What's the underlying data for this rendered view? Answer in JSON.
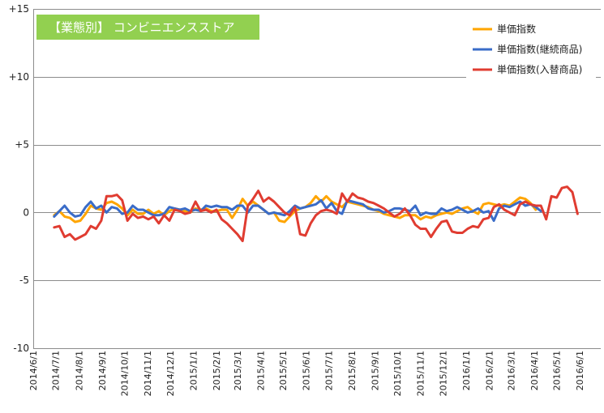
{
  "chart_data": {
    "type": "line",
    "title": "【業態別】 コンビニエンスストア",
    "ylim": [
      -10,
      15
    ],
    "yticks": [
      {
        "value": 15,
        "label": "+15"
      },
      {
        "value": 10,
        "label": "+10"
      },
      {
        "value": 5,
        "label": "+5"
      },
      {
        "value": 0,
        "label": "0"
      },
      {
        "value": -5,
        "label": "-5"
      },
      {
        "value": -10,
        "label": "-10"
      }
    ],
    "x_start": "2014/6/1",
    "x_end": "2016/6/29",
    "xtick_labels": [
      "2014/6/1",
      "2014/7/1",
      "2014/8/1",
      "2014/9/1",
      "2014/10/1",
      "2014/11/1",
      "2014/12/1",
      "2015/1/1",
      "2015/2/1",
      "2015/3/1",
      "2015/4/1",
      "2015/5/1",
      "2015/6/1",
      "2015/7/1",
      "2015/8/1",
      "2015/9/1",
      "2015/10/1",
      "2015/11/1",
      "2015/12/1",
      "2016/1/1",
      "2016/2/1",
      "2016/3/1",
      "2016/4/1",
      "2016/5/1",
      "2016/6/1"
    ],
    "legend_position": "top-right",
    "grid": true,
    "series": [
      {
        "name": "単価指数",
        "color": "#ffa500",
        "values": [
          -0.2,
          0.1,
          -0.3,
          -0.4,
          -0.7,
          -0.6,
          -0.1,
          0.5,
          0.3,
          0.2,
          0.7,
          0.8,
          0.6,
          0.3,
          -0.2,
          0.2,
          -0.1,
          -0.1,
          0.2,
          -0.1,
          0.1,
          -0.2,
          0.1,
          0.3,
          0.2,
          0.1,
          0.0,
          0.3,
          0.2,
          0.3,
          0.1,
          0.1,
          0.2,
          0.2,
          -0.4,
          0.2,
          1.0,
          0.5,
          0.8,
          0.5,
          0.2,
          -0.1,
          0.0,
          -0.6,
          -0.7,
          -0.3,
          0.1,
          0.3,
          0.4,
          0.7,
          1.2,
          0.8,
          1.2,
          0.8,
          0.6,
          0.4,
          0.8,
          0.7,
          0.6,
          0.5,
          0.4,
          0.2,
          0.1,
          -0.1,
          -0.2,
          -0.3,
          -0.4,
          -0.2,
          -0.2,
          -0.2,
          -0.5,
          -0.3,
          -0.4,
          -0.2,
          -0.1,
          0.0,
          -0.1,
          0.1,
          0.3,
          0.4,
          0.1,
          -0.1,
          0.6,
          0.7,
          0.6,
          0.5,
          0.6,
          0.5,
          0.8,
          1.1,
          1.0,
          0.7,
          0.2
        ]
      },
      {
        "name": "単価指数(継続商品)",
        "color": "#3a6cc8",
        "values": [
          -0.3,
          0.1,
          0.5,
          0.0,
          -0.3,
          -0.2,
          0.4,
          0.8,
          0.3,
          0.5,
          0.0,
          0.4,
          0.3,
          -0.1,
          0.0,
          0.5,
          0.2,
          0.2,
          0.0,
          -0.2,
          -0.2,
          -0.1,
          0.4,
          0.3,
          0.2,
          0.3,
          0.1,
          0.2,
          0.1,
          0.5,
          0.4,
          0.5,
          0.4,
          0.4,
          0.2,
          0.5,
          0.5,
          0.0,
          0.5,
          0.5,
          0.2,
          -0.1,
          0.0,
          -0.1,
          -0.2,
          0.1,
          0.5,
          0.3,
          0.4,
          0.5,
          0.6,
          0.9,
          0.3,
          0.7,
          0.1,
          -0.1,
          0.9,
          0.8,
          0.7,
          0.6,
          0.3,
          0.2,
          0.2,
          0.0,
          0.1,
          0.3,
          0.3,
          0.2,
          0.1,
          0.5,
          -0.2,
          0.0,
          -0.1,
          -0.1,
          0.3,
          0.1,
          0.2,
          0.4,
          0.2,
          0.0,
          0.1,
          0.3,
          0.0,
          0.1,
          -0.6,
          0.3,
          0.5,
          0.4,
          0.6,
          0.8,
          0.5,
          0.6,
          0.4,
          0.1
        ]
      },
      {
        "name": "単価指数(入替商品)",
        "color": "#e03c31",
        "values": [
          -1.1,
          -1.0,
          -1.8,
          -1.6,
          -2.0,
          -1.8,
          -1.6,
          -1.0,
          -1.2,
          -0.6,
          1.2,
          1.2,
          1.3,
          0.9,
          -0.6,
          -0.1,
          -0.4,
          -0.3,
          -0.5,
          -0.3,
          -0.8,
          -0.2,
          -0.6,
          0.2,
          0.1,
          -0.1,
          0.0,
          0.8,
          0.1,
          0.2,
          0.0,
          0.2,
          -0.5,
          -0.8,
          -1.2,
          -1.6,
          -2.1,
          0.5,
          1.0,
          1.6,
          0.8,
          1.1,
          0.8,
          0.4,
          0.0,
          -0.2,
          0.4,
          -1.6,
          -1.7,
          -0.8,
          -0.2,
          0.1,
          0.2,
          0.1,
          -0.1,
          1.4,
          0.8,
          1.4,
          1.1,
          1.0,
          0.8,
          0.7,
          0.5,
          0.3,
          0.0,
          -0.3,
          -0.1,
          0.3,
          -0.2,
          -0.9,
          -1.2,
          -1.2,
          -1.8,
          -1.2,
          -0.7,
          -0.6,
          -1.4,
          -1.5,
          -1.5,
          -1.2,
          -1.0,
          -1.1,
          -0.5,
          -0.4,
          0.4,
          0.6,
          0.2,
          0.0,
          -0.2,
          0.6,
          0.8,
          0.6,
          0.5,
          0.5,
          -0.5,
          1.2,
          1.1,
          1.8,
          1.9,
          1.5,
          -0.1
        ]
      }
    ]
  }
}
